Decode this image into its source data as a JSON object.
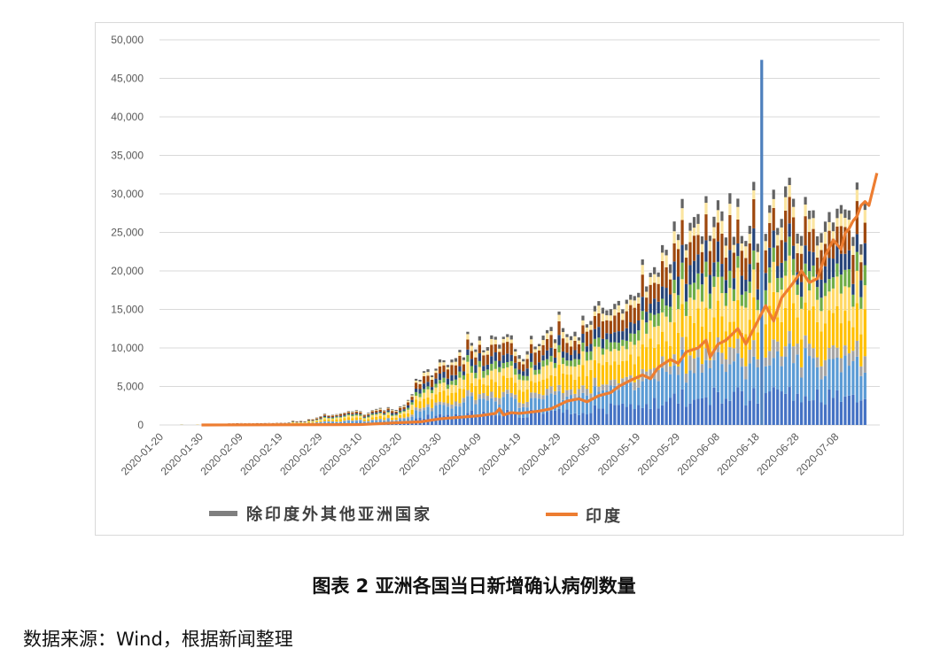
{
  "chart_data": {
    "type": "bar",
    "title": "图表 2 亚洲各国当日新增确认病例数量",
    "ylim": [
      0,
      50000
    ],
    "y_ticks": [
      "0",
      "5,000",
      "10,000",
      "15,000",
      "20,000",
      "25,000",
      "30,000",
      "35,000",
      "40,000",
      "45,000",
      "50,000"
    ],
    "y_tick_values": [
      0,
      5000,
      10000,
      15000,
      20000,
      25000,
      30000,
      35000,
      40000,
      45000,
      50000
    ],
    "x_ticks": [
      "2020-01-20",
      "2020-01-30",
      "2020-02-09",
      "2020-02-19",
      "2020-02-29",
      "2020-03-10",
      "2020-03-20",
      "2020-03-30",
      "2020-04-09",
      "2020-04-19",
      "2020-04-29",
      "2020-05-09",
      "2020-05-19",
      "2020-05-29",
      "2020-06-08",
      "2020-06-18",
      "2020-06-28",
      "2020-07-08"
    ],
    "x_range_days": [
      0,
      177
    ],
    "series": [
      {
        "name": "除印度外其他亚洲国家",
        "type": "stacked-bar",
        "color": "#7f7f7f",
        "component_colors": [
          "#4472c4",
          "#5b9bd5",
          "#a5a5a5",
          "#ffc000",
          "#ffd966",
          "#70ad47",
          "#264478",
          "#9e480e",
          "#fbe5a0",
          "#636363"
        ],
        "totals_key": [
          [
            0,
            100
          ],
          [
            10,
            150
          ],
          [
            20,
            250
          ],
          [
            30,
            300
          ],
          [
            33,
            500
          ],
          [
            38,
            800
          ],
          [
            40,
            1300
          ],
          [
            44,
            1500
          ],
          [
            47,
            1800
          ],
          [
            50,
            1700
          ],
          [
            55,
            2000
          ],
          [
            58,
            2200
          ],
          [
            62,
            3000
          ],
          [
            64,
            5500
          ],
          [
            66,
            7000
          ],
          [
            68,
            7500
          ],
          [
            70,
            8500
          ],
          [
            75,
            9000
          ],
          [
            78,
            11000
          ],
          [
            82,
            10000
          ],
          [
            84,
            12500
          ],
          [
            86,
            11000
          ],
          [
            90,
            10000
          ],
          [
            95,
            11000
          ],
          [
            98,
            12500
          ],
          [
            102,
            13500
          ],
          [
            106,
            14000
          ],
          [
            110,
            15500
          ],
          [
            114,
            17000
          ],
          [
            118,
            16500
          ],
          [
            121,
            19500
          ],
          [
            125,
            22000
          ],
          [
            127,
            25000
          ],
          [
            130,
            25500
          ],
          [
            135,
            27000
          ],
          [
            140,
            28000
          ],
          [
            145,
            27000
          ],
          [
            148,
            26000
          ],
          [
            150,
            27500
          ],
          [
            152,
            28500
          ],
          [
            154,
            30000
          ],
          [
            157,
            29500
          ],
          [
            160,
            28500
          ],
          [
            165,
            28500
          ],
          [
            170,
            28000
          ],
          [
            175,
            27000
          ],
          [
            177,
            28000
          ]
        ],
        "spikes": [
          [
            151,
            47400
          ]
        ]
      },
      {
        "name": "印度",
        "type": "line",
        "color": "#ed7d31",
        "points": [
          [
            10,
            0
          ],
          [
            50,
            50
          ],
          [
            60,
            300
          ],
          [
            65,
            400
          ],
          [
            70,
            800
          ],
          [
            75,
            1000
          ],
          [
            80,
            1200
          ],
          [
            84,
            1500
          ],
          [
            85,
            2100
          ],
          [
            86,
            1300
          ],
          [
            88,
            1600
          ],
          [
            90,
            1500
          ],
          [
            95,
            1800
          ],
          [
            98,
            2100
          ],
          [
            102,
            3100
          ],
          [
            105,
            3400
          ],
          [
            107,
            3000
          ],
          [
            110,
            3800
          ],
          [
            113,
            4200
          ],
          [
            115,
            5000
          ],
          [
            118,
            5800
          ],
          [
            121,
            6500
          ],
          [
            123,
            6000
          ],
          [
            125,
            7500
          ],
          [
            128,
            8500
          ],
          [
            130,
            8000
          ],
          [
            132,
            9500
          ],
          [
            135,
            10000
          ],
          [
            137,
            11000
          ],
          [
            138,
            8800
          ],
          [
            140,
            10500
          ],
          [
            142,
            11000
          ],
          [
            145,
            12500
          ],
          [
            147,
            10500
          ],
          [
            150,
            13500
          ],
          [
            152,
            15500
          ],
          [
            153,
            14500
          ],
          [
            154,
            13500
          ],
          [
            156,
            16500
          ],
          [
            159,
            18500
          ],
          [
            161,
            20000
          ],
          [
            163,
            18500
          ],
          [
            165,
            19000
          ],
          [
            167,
            22000
          ],
          [
            169,
            24000
          ],
          [
            171,
            22800
          ],
          [
            172,
            24900
          ],
          [
            173,
            25500
          ],
          [
            174,
            26500
          ],
          [
            175,
            27100
          ],
          [
            176,
            28500
          ],
          [
            177,
            29000
          ],
          [
            178,
            28500
          ],
          [
            180,
            32700
          ]
        ]
      }
    ],
    "legend": [
      {
        "label": "除印度外其他亚洲国家",
        "color": "#7f7f7f",
        "kind": "bar"
      },
      {
        "label": "印度",
        "color": "#ed7d31",
        "kind": "line"
      }
    ],
    "legend_position": "bottom"
  },
  "caption": "图表 2 亚洲各国当日新增确认病例数量",
  "source": "数据来源：Wind，根据新闻整理"
}
